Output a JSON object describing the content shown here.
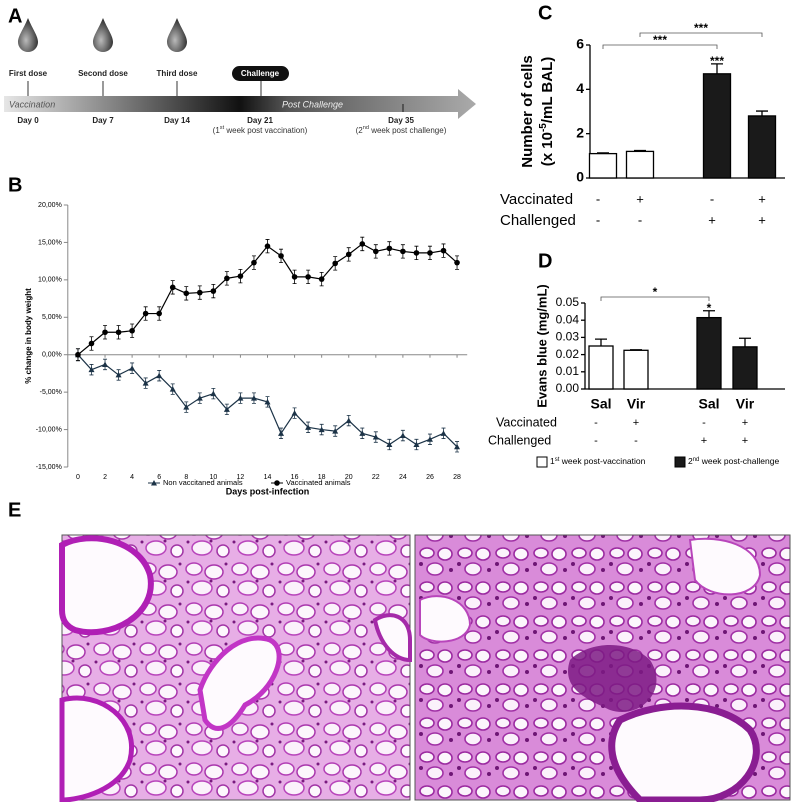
{
  "panels": {
    "a": "A",
    "b": "B",
    "c": "C",
    "d": "D",
    "e": "E"
  },
  "timeline": {
    "events": [
      "First dose",
      "Second dose",
      "Third dose"
    ],
    "challenge": "Challenge",
    "phases": [
      "Vaccination",
      "Post Challenge"
    ],
    "days": [
      "Day 0",
      "Day 7",
      "Day 14",
      "Day 21",
      "Day 35"
    ],
    "notes": [
      "(1st week post vaccination)",
      "(2nd week post challenge)"
    ]
  },
  "chart_data": [
    {
      "type": "line",
      "x_label": "Days post-infection",
      "y_label": "% change in body weight",
      "x": [
        0,
        1,
        2,
        3,
        4,
        5,
        6,
        7,
        8,
        9,
        10,
        11,
        12,
        13,
        14,
        15,
        16,
        17,
        18,
        19,
        20,
        21,
        22,
        23,
        24,
        25,
        26,
        27,
        28
      ],
      "xlim": [
        -0.75,
        28.75
      ],
      "xticks": [
        0,
        2,
        4,
        6,
        8,
        10,
        12,
        14,
        16,
        18,
        20,
        22,
        24,
        26,
        28
      ],
      "ylim": [
        -15,
        20
      ],
      "yticks": [
        {
          "value": -15,
          "label": "-15,00%"
        },
        {
          "value": -10,
          "label": "-10,00%"
        },
        {
          "value": -5,
          "label": "-5,00%"
        },
        {
          "value": 0,
          "label": "0,00%"
        },
        {
          "value": 5,
          "label": "5,00%"
        },
        {
          "value": 10,
          "label": "10,00%"
        },
        {
          "value": 15,
          "label": "15,00%"
        },
        {
          "value": 20,
          "label": "20,00%"
        }
      ],
      "series": [
        {
          "name": "Non vaccitaned animals",
          "color": "#1c3347",
          "marker": "triangle",
          "values": [
            0,
            -2,
            -1.3,
            -2.7,
            -1.8,
            -3.8,
            -2.8,
            -4.6,
            -7,
            -5.8,
            -5.2,
            -7.3,
            -5.8,
            -5.8,
            -6.3,
            -10.5,
            -7.8,
            -9.7,
            -10,
            -10.2,
            -8.8,
            -10.5,
            -11,
            -12,
            -10.8,
            -12,
            -11.3,
            -10.5,
            -12.3
          ],
          "errors": [
            0.8,
            0.7,
            0.7,
            0.7,
            0.7,
            0.7,
            0.7,
            0.7,
            0.7,
            0.7,
            0.7,
            0.7,
            0.7,
            0.7,
            0.7,
            0.7,
            0.7,
            0.7,
            0.7,
            0.7,
            0.7,
            0.7,
            0.7,
            0.7,
            0.7,
            0.7,
            0.7,
            0.7,
            0.7
          ]
        },
        {
          "name": "Vaccinated animals",
          "color": "#000000",
          "marker": "circle",
          "values": [
            0,
            1.5,
            3,
            3,
            3.2,
            5.5,
            5.5,
            9,
            8.2,
            8.3,
            8.5,
            10.2,
            10.5,
            12.3,
            14.5,
            13.2,
            10.4,
            10.4,
            10.1,
            12.2,
            13.4,
            14.8,
            13.8,
            14.2,
            13.8,
            13.6,
            13.6,
            13.9,
            12.3
          ],
          "errors": [
            0.8,
            0.9,
            0.9,
            0.9,
            0.9,
            0.9,
            0.9,
            0.9,
            0.9,
            0.9,
            0.9,
            0.9,
            0.9,
            0.9,
            0.9,
            0.9,
            0.9,
            0.9,
            0.9,
            0.9,
            0.9,
            0.9,
            0.9,
            0.9,
            0.9,
            0.9,
            0.9,
            0.9,
            0.9
          ]
        }
      ]
    },
    {
      "type": "bar",
      "y_label": {
        "line1": "Number of cells",
        "pre": "(x 10",
        "sup": "-5",
        "post": "/mL BAL)"
      },
      "values": [
        1.1,
        1.2,
        4.7,
        2.8
      ],
      "errors": [
        0.03,
        0.04,
        0.45,
        0.22
      ],
      "colors": [
        "#ffffff",
        "#ffffff",
        "#1a1a1a",
        "#1a1a1a"
      ],
      "ylim": [
        0,
        6
      ],
      "yticks": [
        0,
        2,
        4,
        6
      ],
      "rows": [
        {
          "label": "Vaccinated",
          "marks": [
            "-",
            "+",
            "-",
            "+"
          ]
        },
        {
          "label": "Challenged",
          "marks": [
            "-",
            "-",
            "+",
            "+"
          ]
        }
      ],
      "annotations": [
        {
          "text": "***",
          "from": 2,
          "to": 2
        },
        {
          "text": "***",
          "from": 0,
          "to": 2
        },
        {
          "text": "***",
          "from": 1,
          "to": 3
        }
      ]
    },
    {
      "type": "bar",
      "y_label": "Evans blue (mg/mL)",
      "categories": [
        "Sal",
        "Vir",
        "Sal",
        "Vir"
      ],
      "series": [
        {
          "name": "1st week post-vaccination",
          "color": "#ffffff",
          "values": [
            0.025,
            0.0225,
            null,
            null
          ],
          "errors": [
            0.004,
            0.0003,
            null,
            null
          ]
        },
        {
          "name": "2nd week post-challenge",
          "color": "#1a1a1a",
          "values": [
            null,
            null,
            0.0415,
            0.0245
          ],
          "errors": [
            null,
            null,
            0.004,
            0.005
          ]
        }
      ],
      "ylim": [
        0,
        0.05
      ],
      "yticks": [
        {
          "value": 0,
          "label": "0.00"
        },
        0.01,
        0.02,
        0.03,
        0.04,
        0.05
      ],
      "rows": [
        {
          "label": "Vaccinated",
          "marks": [
            "-",
            "+",
            "-",
            "+"
          ]
        },
        {
          "label": "Challenged",
          "marks": [
            "-",
            "-",
            "+",
            "+"
          ]
        }
      ],
      "annotations": [
        {
          "text": "*",
          "from": 2,
          "to": 2
        },
        {
          "text": "*",
          "from": 0,
          "to": 2
        }
      ]
    }
  ]
}
